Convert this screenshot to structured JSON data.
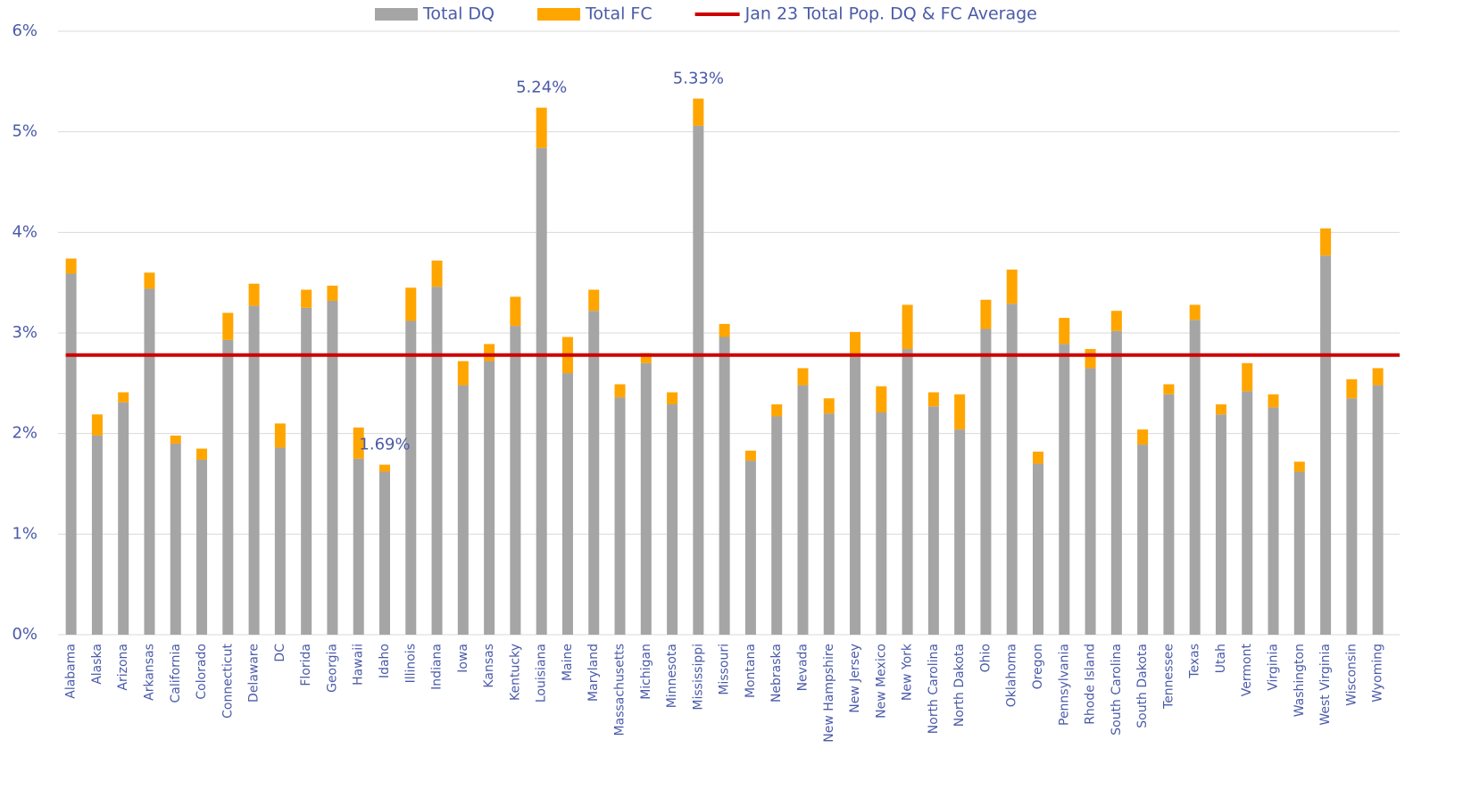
{
  "chart_data": {
    "type": "stacked_bar",
    "categories": [
      "Alabama",
      "Alaska",
      "Arizona",
      "Arkansas",
      "California",
      "Colorado",
      "Connecticut",
      "Delaware",
      "DC",
      "Florida",
      "Georgia",
      "Hawaii",
      "Idaho",
      "Illinois",
      "Indiana",
      "Iowa",
      "Kansas",
      "Kentucky",
      "Louisiana",
      "Maine",
      "Maryland",
      "Massachusetts",
      "Michigan",
      "Minnesota",
      "Mississippi",
      "Missouri",
      "Montana",
      "Nebraska",
      "Nevada",
      "New Hampshire",
      "New Jersey",
      "New Mexico",
      "New York",
      "North Carolina",
      "North Dakota",
      "Ohio",
      "Oklahoma",
      "Oregon",
      "Pennsylvania",
      "Rhode Island",
      "South Carolina",
      "South Dakota",
      "Tennessee",
      "Texas",
      "Utah",
      "Vermont",
      "Virginia",
      "Washington",
      "West Virginia",
      "Wisconsin",
      "Wyoming"
    ],
    "series": [
      {
        "name": "Total DQ",
        "color": "#a5a5a5",
        "values": [
          3.59,
          1.98,
          2.31,
          3.44,
          1.9,
          1.74,
          2.93,
          3.27,
          1.86,
          3.25,
          3.32,
          1.75,
          1.62,
          3.12,
          3.46,
          2.48,
          2.72,
          3.07,
          4.84,
          2.6,
          3.22,
          2.36,
          2.7,
          2.29,
          5.06,
          2.96,
          1.73,
          2.17,
          2.48,
          2.2,
          2.76,
          2.21,
          2.84,
          2.27,
          2.04,
          3.04,
          3.29,
          1.7,
          2.89,
          2.65,
          3.02,
          1.89,
          2.39,
          3.13,
          2.19,
          2.42,
          2.26,
          1.62,
          3.77,
          2.35,
          2.48
        ]
      },
      {
        "name": "Total FC",
        "color": "#ffa500",
        "values": [
          0.15,
          0.21,
          0.1,
          0.16,
          0.08,
          0.11,
          0.27,
          0.22,
          0.24,
          0.18,
          0.15,
          0.31,
          0.07,
          0.33,
          0.26,
          0.24,
          0.17,
          0.29,
          0.4,
          0.36,
          0.21,
          0.13,
          0.1,
          0.12,
          0.27,
          0.13,
          0.1,
          0.12,
          0.17,
          0.15,
          0.25,
          0.26,
          0.44,
          0.14,
          0.35,
          0.29,
          0.34,
          0.12,
          0.26,
          0.19,
          0.2,
          0.15,
          0.1,
          0.15,
          0.1,
          0.28,
          0.13,
          0.1,
          0.27,
          0.19,
          0.17
        ]
      }
    ],
    "average_line": {
      "name": "Jan 23 Total Pop. DQ & FC Average",
      "color": "#cc0000",
      "value": 2.78
    },
    "annotations": [
      {
        "x": "Louisiana",
        "y": 5.24,
        "label": "5.24%"
      },
      {
        "x": "Mississippi",
        "y": 5.33,
        "label": "5.33%"
      },
      {
        "x": "Idaho",
        "y": 1.69,
        "label": "1.69%"
      }
    ],
    "ylim": [
      0,
      6
    ],
    "yticks": [
      {
        "value": 0,
        "label": "0%"
      },
      {
        "value": 1,
        "label": "1%"
      },
      {
        "value": 2,
        "label": "2%"
      },
      {
        "value": 3,
        "label": "3%"
      },
      {
        "value": 4,
        "label": "4%"
      },
      {
        "value": 5,
        "label": "5%"
      },
      {
        "value": 6,
        "label": "6%"
      }
    ],
    "grid": true,
    "legend": "top"
  }
}
